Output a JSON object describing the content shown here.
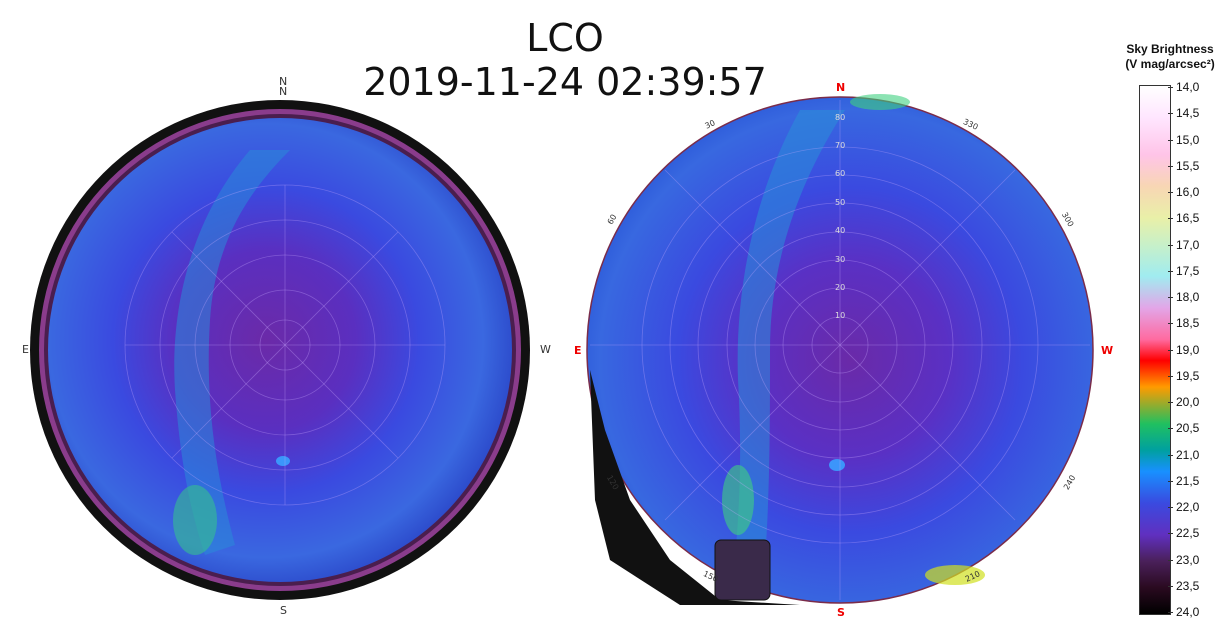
{
  "title": {
    "site": "LCO",
    "datetime": "2019-11-24 02:39:57"
  },
  "left_view": {
    "north": "N",
    "south": "S",
    "east": "E",
    "west": "W",
    "north_extra": "N"
  },
  "right_view": {
    "north": "N",
    "south": "S",
    "east": "E",
    "west": "W",
    "altitudes": [
      "80",
      "70",
      "60",
      "50",
      "40",
      "30",
      "20",
      "10"
    ],
    "azimuths": [
      "30",
      "330",
      "60",
      "300",
      "120",
      "240",
      "150",
      "210"
    ]
  },
  "colorbar": {
    "title_line1": "Sky Brightness",
    "title_line2": "(V mag/arcsec²)",
    "ticks": [
      "14,0",
      "14,5",
      "15,0",
      "15,5",
      "16,0",
      "16,5",
      "17,0",
      "17,5",
      "18,0",
      "18,5",
      "19,0",
      "19,5",
      "20,0",
      "20,5",
      "21,0",
      "21,5",
      "22,0",
      "22,5",
      "23,0",
      "23,5",
      "24,0"
    ]
  },
  "colors": {
    "sky_mid": "#3b47d8",
    "sky_center": "#6a2db5",
    "milky_way": "#2fa0d0",
    "horizon_ring": "#7a2c6a"
  }
}
